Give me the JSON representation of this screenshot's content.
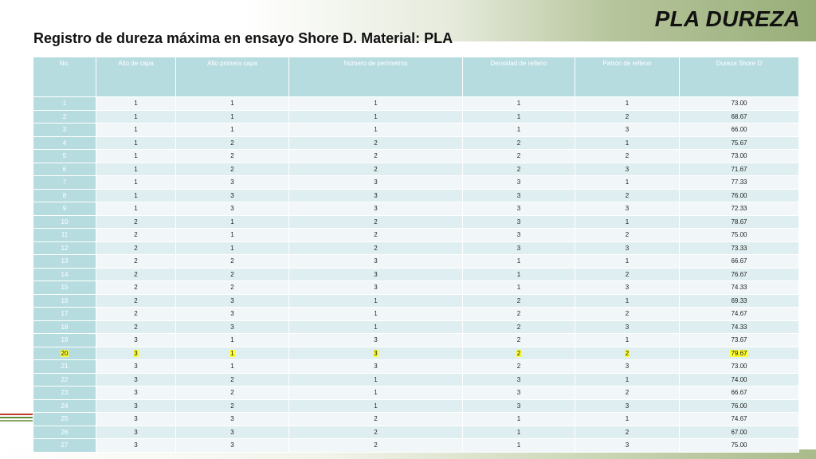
{
  "slide": {
    "title": "PLA DUREZA",
    "subtitle": "Registro de dureza máxima en ensayo Shore D. Material: PLA"
  },
  "table": {
    "headers": [
      "No.",
      "Alto de capa",
      "Alto primera capa",
      "Número de perímetros",
      "Densidad de relleno",
      "Patrón de relleno",
      "Dureza Shore D"
    ],
    "highlight_row": "20",
    "rows": [
      [
        "1",
        "1",
        "1",
        "1",
        "1",
        "1",
        "73.00"
      ],
      [
        "2",
        "1",
        "1",
        "1",
        "1",
        "2",
        "68.67"
      ],
      [
        "3",
        "1",
        "1",
        "1",
        "1",
        "3",
        "66.00"
      ],
      [
        "4",
        "1",
        "2",
        "2",
        "2",
        "1",
        "75.67"
      ],
      [
        "5",
        "1",
        "2",
        "2",
        "2",
        "2",
        "73.00"
      ],
      [
        "6",
        "1",
        "2",
        "2",
        "2",
        "3",
        "71.67"
      ],
      [
        "7",
        "1",
        "3",
        "3",
        "3",
        "1",
        "77.33"
      ],
      [
        "8",
        "1",
        "3",
        "3",
        "3",
        "2",
        "76.00"
      ],
      [
        "9",
        "1",
        "3",
        "3",
        "3",
        "3",
        "72.33"
      ],
      [
        "10",
        "2",
        "1",
        "2",
        "3",
        "1",
        "78.67"
      ],
      [
        "11",
        "2",
        "1",
        "2",
        "3",
        "2",
        "75.00"
      ],
      [
        "12",
        "2",
        "1",
        "2",
        "3",
        "3",
        "73.33"
      ],
      [
        "13",
        "2",
        "2",
        "3",
        "1",
        "1",
        "66.67"
      ],
      [
        "14",
        "2",
        "2",
        "3",
        "1",
        "2",
        "76.67"
      ],
      [
        "15",
        "2",
        "2",
        "3",
        "1",
        "3",
        "74.33"
      ],
      [
        "16",
        "2",
        "3",
        "1",
        "2",
        "1",
        "69.33"
      ],
      [
        "17",
        "2",
        "3",
        "1",
        "2",
        "2",
        "74.67"
      ],
      [
        "18",
        "2",
        "3",
        "1",
        "2",
        "3",
        "74.33"
      ],
      [
        "19",
        "3",
        "1",
        "3",
        "2",
        "1",
        "73.67"
      ],
      [
        "20",
        "3",
        "1",
        "3",
        "2",
        "2",
        "79.67"
      ],
      [
        "21",
        "3",
        "1",
        "3",
        "2",
        "3",
        "73.00"
      ],
      [
        "22",
        "3",
        "2",
        "1",
        "3",
        "1",
        "74.00"
      ],
      [
        "23",
        "3",
        "2",
        "1",
        "3",
        "2",
        "66.67"
      ],
      [
        "24",
        "3",
        "2",
        "1",
        "3",
        "3",
        "76.00"
      ],
      [
        "25",
        "3",
        "3",
        "2",
        "1",
        "1",
        "74.67"
      ],
      [
        "26",
        "3",
        "3",
        "2",
        "1",
        "2",
        "67.00"
      ],
      [
        "27",
        "3",
        "3",
        "2",
        "1",
        "3",
        "75.00"
      ]
    ]
  },
  "colors": {
    "header_bg": "#b7dce0",
    "row_light": "#f1f7f8",
    "row_dark": "#dfeef0",
    "highlight": "#ffff33"
  }
}
